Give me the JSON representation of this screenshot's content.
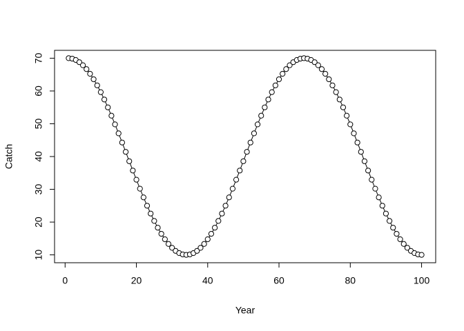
{
  "chart_data": {
    "type": "line",
    "x_label": "Year",
    "y_label": "Catch",
    "x": [
      1,
      2,
      3,
      4,
      5,
      6,
      7,
      8,
      9,
      10,
      11,
      12,
      13,
      14,
      15,
      16,
      17,
      18,
      19,
      20,
      21,
      22,
      23,
      24,
      25,
      26,
      27,
      28,
      29,
      30,
      31,
      32,
      33,
      34,
      35,
      36,
      37,
      38,
      39,
      40,
      41,
      42,
      43,
      44,
      45,
      46,
      47,
      48,
      49,
      50,
      51,
      52,
      53,
      54,
      55,
      56,
      57,
      58,
      59,
      60,
      61,
      62,
      63,
      64,
      65,
      66,
      67,
      68,
      69,
      70,
      71,
      72,
      73,
      74,
      75,
      76,
      77,
      78,
      79,
      80,
      81,
      82,
      83,
      84,
      85,
      86,
      87,
      88,
      89,
      90,
      91,
      92,
      93,
      94,
      95,
      96,
      97,
      98,
      99,
      100
    ],
    "series": [
      {
        "color": "#000000",
        "values": [
          70,
          69.86,
          69.46,
          68.78,
          67.85,
          66.67,
          65.24,
          63.58,
          61.71,
          59.65,
          57.4,
          55,
          52.46,
          49.81,
          47.07,
          44.27,
          41.43,
          38.57,
          35.73,
          32.93,
          30.19,
          27.54,
          25,
          22.6,
          20.35,
          18.29,
          16.42,
          14.76,
          13.33,
          12.15,
          11.22,
          10.54,
          10.14,
          10,
          10.14,
          10.54,
          11.22,
          12.15,
          13.33,
          14.76,
          16.42,
          18.29,
          20.35,
          22.6,
          25,
          27.54,
          30.19,
          32.93,
          35.73,
          38.57,
          41.43,
          44.27,
          47.07,
          49.81,
          52.46,
          55,
          57.4,
          59.65,
          61.71,
          63.58,
          65.24,
          66.67,
          67.85,
          68.78,
          69.46,
          69.86,
          70,
          69.86,
          69.46,
          68.78,
          67.85,
          66.67,
          65.24,
          63.58,
          61.71,
          59.65,
          57.4,
          55,
          52.46,
          49.81,
          47.07,
          44.27,
          41.43,
          38.57,
          35.73,
          32.93,
          30.19,
          27.54,
          25,
          22.6,
          20.35,
          18.29,
          16.42,
          14.76,
          13.33,
          12.15,
          11.22,
          10.54,
          10.14,
          10
        ]
      }
    ],
    "xlim": [
      -2.96,
      103.96
    ],
    "xticks": [
      0,
      20,
      40,
      60,
      80,
      100
    ],
    "ylim": [
      7.6,
      72.4
    ],
    "yticks": [
      10,
      20,
      30,
      40,
      50,
      60,
      70
    ]
  }
}
